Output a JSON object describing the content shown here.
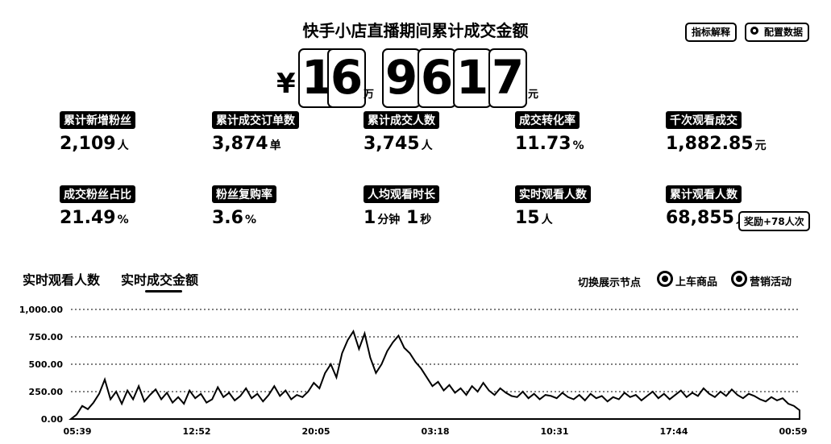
{
  "header": {
    "title": "快手小店直播期间累计成交金额",
    "explain_btn": "指标解释",
    "config_btn": "配置数据",
    "config_icon": "gear-icon"
  },
  "total": {
    "currency": "¥",
    "digits_wan": [
      "1",
      "6"
    ],
    "wan_unit": "万",
    "digits_rest": [
      "9",
      "6",
      "1",
      "7"
    ],
    "yuan_unit": "元"
  },
  "metrics": [
    {
      "label": "累计新增粉丝",
      "value": "2,109",
      "unit": "人"
    },
    {
      "label": "累计成交订单数",
      "value": "3,874",
      "unit": "单"
    },
    {
      "label": "累计成交人数",
      "value": "3,745",
      "unit": "人"
    },
    {
      "label": "成交转化率",
      "value": "11.73",
      "unit": "%"
    },
    {
      "label": "千次观看成交",
      "value": "1,882.85",
      "unit": "元"
    },
    {
      "label": "成交粉丝占比",
      "value": "21.49",
      "unit": "%"
    },
    {
      "label": "粉丝复购率",
      "value": "3.6",
      "unit": "%"
    },
    {
      "label": "人均观看时长",
      "value": "1",
      "unit": "分钟",
      "value2": "1",
      "unit2": "秒"
    },
    {
      "label": "实时观看人数",
      "value": "15",
      "unit": "人"
    },
    {
      "label": "累计观看人数",
      "value": "68,855",
      "unit": "人",
      "badge": "奖励+78人次"
    }
  ],
  "tabs": [
    {
      "label": "实时观看人数",
      "active": false
    },
    {
      "label": "实时成交金额",
      "active": true
    }
  ],
  "switch": {
    "label": "切换展示节点",
    "options": [
      {
        "label": "上车商品",
        "selected": true
      },
      {
        "label": "营销活动",
        "selected": true
      }
    ]
  },
  "chart_data": {
    "type": "area",
    "ylim": [
      0,
      1000
    ],
    "y_ticks": [
      "0.00",
      "250.00",
      "500.00",
      "750.00",
      "1,000.00"
    ],
    "x_ticks": [
      "05:39",
      "12:52",
      "20:05",
      "03:18",
      "10:31",
      "17:44",
      "00:59"
    ],
    "grid": true,
    "series": [
      {
        "values": [
          0,
          40,
          120,
          90,
          150,
          230,
          360,
          180,
          250,
          140,
          260,
          180,
          300,
          160,
          220,
          270,
          180,
          240,
          150,
          200,
          140,
          260,
          190,
          230,
          150,
          180,
          290,
          200,
          240,
          170,
          210,
          280,
          190,
          230,
          160,
          220,
          300,
          210,
          260,
          180,
          220,
          200,
          250,
          330,
          280,
          420,
          500,
          380,
          600,
          720,
          800,
          640,
          780,
          560,
          420,
          500,
          620,
          700,
          760,
          650,
          600,
          520,
          460,
          380,
          300,
          340,
          260,
          310,
          240,
          280,
          220,
          300,
          250,
          330,
          260,
          220,
          280,
          240,
          210,
          200,
          250,
          190,
          230,
          180,
          220,
          210,
          190,
          240,
          200,
          180,
          220,
          170,
          230,
          190,
          210,
          160,
          200,
          180,
          240,
          200,
          220,
          170,
          210,
          250,
          190,
          230,
          180,
          220,
          260,
          200,
          240,
          210,
          280,
          230,
          200,
          250,
          210,
          270,
          220,
          190,
          230,
          210,
          180,
          160,
          200,
          170,
          190,
          140,
          120,
          80
        ]
      }
    ]
  }
}
